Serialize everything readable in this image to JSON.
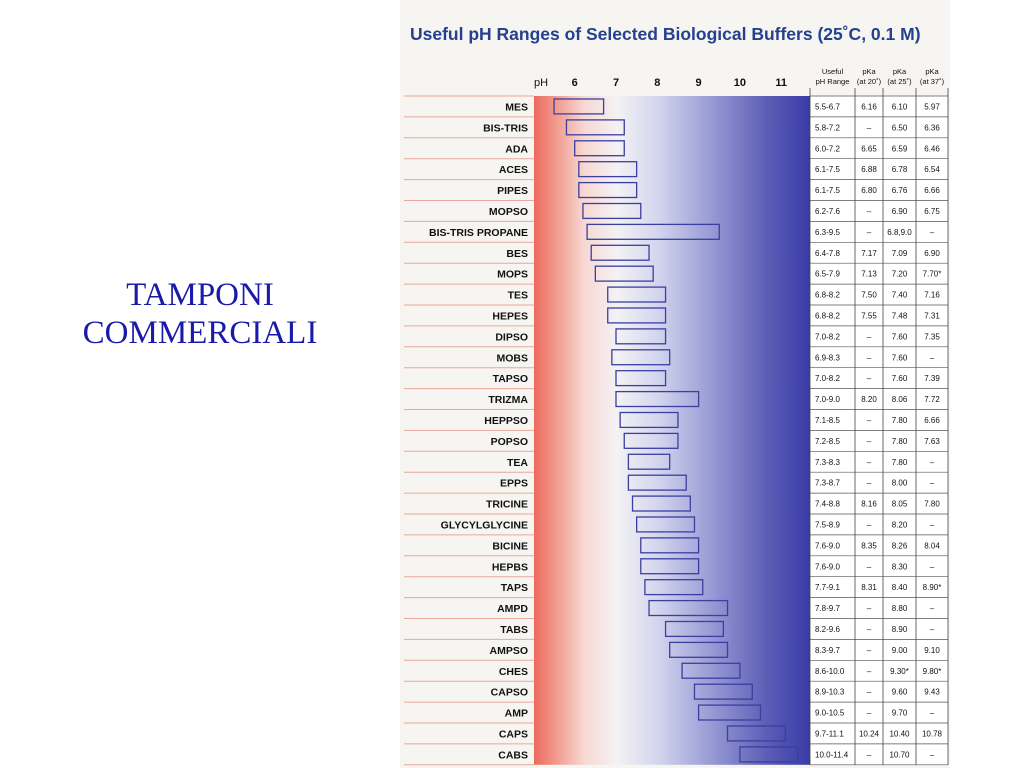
{
  "slide": {
    "title_line1": "TAMPONI",
    "title_line2": "COMMERCIALI",
    "title_color": "#1a1aa8"
  },
  "chart_data": {
    "type": "bar",
    "title": "Useful pH Ranges of Selected Biological Buffers (25˚C, 0.1 M)",
    "title_color": "#25408f",
    "axis_label": "pH",
    "x_ticks": [
      "6",
      "7",
      "8",
      "9",
      "10",
      "11"
    ],
    "xlim": [
      5.0,
      11.7
    ],
    "table_headers": [
      [
        "Useful",
        "pH Range"
      ],
      [
        "pKa",
        "(at 20˚)"
      ],
      [
        "pKa",
        "(at 25˚)"
      ],
      [
        "pKa",
        "(at 37˚)"
      ]
    ],
    "bar_color": "#3a3fa0",
    "background_gradient": "red (acidic) to blue (basic)",
    "rows": [
      {
        "name": "MES",
        "range": [
          5.5,
          6.7
        ],
        "useful": "5.5-6.7",
        "pka20": "6.16",
        "pka25": "6.10",
        "pka37": "5.97"
      },
      {
        "name": "BIS-TRIS",
        "range": [
          5.8,
          7.2
        ],
        "useful": "5.8-7.2",
        "pka20": "–",
        "pka25": "6.50",
        "pka37": "6.36"
      },
      {
        "name": "ADA",
        "range": [
          6.0,
          7.2
        ],
        "useful": "6.0-7.2",
        "pka20": "6.65",
        "pka25": "6.59",
        "pka37": "6.46"
      },
      {
        "name": "ACES",
        "range": [
          6.1,
          7.5
        ],
        "useful": "6.1-7.5",
        "pka20": "6.88",
        "pka25": "6.78",
        "pka37": "6.54"
      },
      {
        "name": "PIPES",
        "range": [
          6.1,
          7.5
        ],
        "useful": "6.1-7.5",
        "pka20": "6.80",
        "pka25": "6.76",
        "pka37": "6.66"
      },
      {
        "name": "MOPSO",
        "range": [
          6.2,
          7.6
        ],
        "useful": "6.2-7.6",
        "pka20": "–",
        "pka25": "6.90",
        "pka37": "6.75"
      },
      {
        "name": "BIS-TRIS PROPANE",
        "range": [
          6.3,
          9.5
        ],
        "useful": "6.3-9.5",
        "pka20": "–",
        "pka25": "6.8,9.0",
        "pka37": "–"
      },
      {
        "name": "BES",
        "range": [
          6.4,
          7.8
        ],
        "useful": "6.4-7.8",
        "pka20": "7.17",
        "pka25": "7.09",
        "pka37": "6.90"
      },
      {
        "name": "MOPS",
        "range": [
          6.5,
          7.9
        ],
        "useful": "6.5-7.9",
        "pka20": "7.13",
        "pka25": "7.20",
        "pka37": "7.70*"
      },
      {
        "name": "TES",
        "range": [
          6.8,
          8.2
        ],
        "useful": "6.8-8.2",
        "pka20": "7.50",
        "pka25": "7.40",
        "pka37": "7.16"
      },
      {
        "name": "HEPES",
        "range": [
          6.8,
          8.2
        ],
        "useful": "6.8-8.2",
        "pka20": "7.55",
        "pka25": "7.48",
        "pka37": "7.31"
      },
      {
        "name": "DIPSO",
        "range": [
          7.0,
          8.2
        ],
        "useful": "7.0-8.2",
        "pka20": "–",
        "pka25": "7.60",
        "pka37": "7.35"
      },
      {
        "name": "MOBS",
        "range": [
          6.9,
          8.3
        ],
        "useful": "6.9-8.3",
        "pka20": "–",
        "pka25": "7.60",
        "pka37": "–"
      },
      {
        "name": "TAPSO",
        "range": [
          7.0,
          8.2
        ],
        "useful": "7.0-8.2",
        "pka20": "–",
        "pka25": "7.60",
        "pka37": "7.39"
      },
      {
        "name": "TRIZMA",
        "range": [
          7.0,
          9.0
        ],
        "useful": "7.0-9.0",
        "pka20": "8.20",
        "pka25": "8.06",
        "pka37": "7.72"
      },
      {
        "name": "HEPPSO",
        "range": [
          7.1,
          8.5
        ],
        "useful": "7.1-8.5",
        "pka20": "–",
        "pka25": "7.80",
        "pka37": "6.66"
      },
      {
        "name": "POPSO",
        "range": [
          7.2,
          8.5
        ],
        "useful": "7.2-8.5",
        "pka20": "–",
        "pka25": "7.80",
        "pka37": "7.63"
      },
      {
        "name": "TEA",
        "range": [
          7.3,
          8.3
        ],
        "useful": "7.3-8.3",
        "pka20": "–",
        "pka25": "7.80",
        "pka37": "–"
      },
      {
        "name": "EPPS",
        "range": [
          7.3,
          8.7
        ],
        "useful": "7.3-8.7",
        "pka20": "–",
        "pka25": "8.00",
        "pka37": "–"
      },
      {
        "name": "TRICINE",
        "range": [
          7.4,
          8.8
        ],
        "useful": "7.4-8.8",
        "pka20": "8.16",
        "pka25": "8.05",
        "pka37": "7.80"
      },
      {
        "name": "GLYCYLGLYCINE",
        "range": [
          7.5,
          8.9
        ],
        "useful": "7.5-8.9",
        "pka20": "–",
        "pka25": "8.20",
        "pka37": "–"
      },
      {
        "name": "BICINE",
        "range": [
          7.6,
          9.0
        ],
        "useful": "7.6-9.0",
        "pka20": "8.35",
        "pka25": "8.26",
        "pka37": "8.04"
      },
      {
        "name": "HEPBS",
        "range": [
          7.6,
          9.0
        ],
        "useful": "7.6-9.0",
        "pka20": "–",
        "pka25": "8.30",
        "pka37": "–"
      },
      {
        "name": "TAPS",
        "range": [
          7.7,
          9.1
        ],
        "useful": "7.7-9.1",
        "pka20": "8.31",
        "pka25": "8.40",
        "pka37": "8.90*"
      },
      {
        "name": "AMPD",
        "range": [
          7.8,
          9.7
        ],
        "useful": "7.8-9.7",
        "pka20": "–",
        "pka25": "8.80",
        "pka37": "–"
      },
      {
        "name": "TABS",
        "range": [
          8.2,
          9.6
        ],
        "useful": "8.2-9.6",
        "pka20": "–",
        "pka25": "8.90",
        "pka37": "–"
      },
      {
        "name": "AMPSO",
        "range": [
          8.3,
          9.7
        ],
        "useful": "8.3-9.7",
        "pka20": "–",
        "pka25": "9.00",
        "pka37": "9.10"
      },
      {
        "name": "CHES",
        "range": [
          8.6,
          10.0
        ],
        "useful": "8.6-10.0",
        "pka20": "–",
        "pka25": "9.30*",
        "pka37": "9.80*"
      },
      {
        "name": "CAPSO",
        "range": [
          8.9,
          10.3
        ],
        "useful": "8.9-10.3",
        "pka20": "–",
        "pka25": "9.60",
        "pka37": "9.43"
      },
      {
        "name": "AMP",
        "range": [
          9.0,
          10.5
        ],
        "useful": "9.0-10.5",
        "pka20": "–",
        "pka25": "9.70",
        "pka37": "–"
      },
      {
        "name": "CAPS",
        "range": [
          9.7,
          11.1
        ],
        "useful": "9.7-11.1",
        "pka20": "10.24",
        "pka25": "10.40",
        "pka37": "10.78"
      },
      {
        "name": "CABS",
        "range": [
          10.0,
          11.4
        ],
        "useful": "10.0-11.4",
        "pka20": "–",
        "pka25": "10.70",
        "pka37": "–"
      }
    ]
  }
}
